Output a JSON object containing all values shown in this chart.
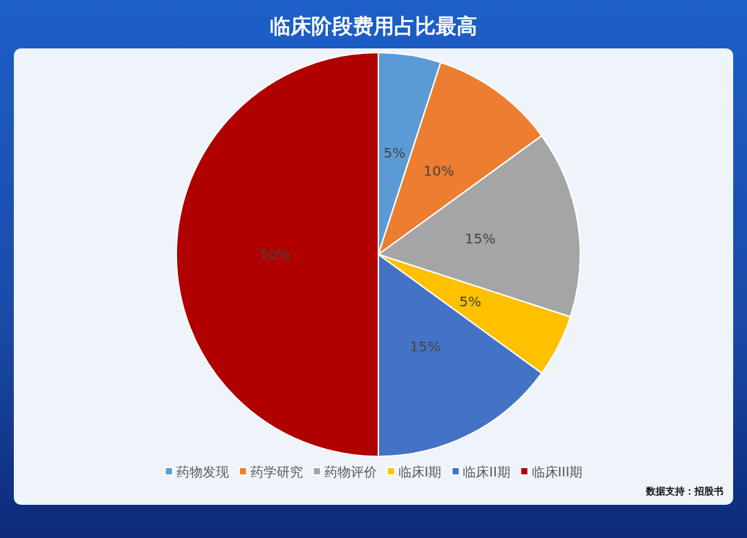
{
  "chart_data": {
    "type": "pie",
    "title": "临床阶段费用占比最高",
    "categories": [
      "药物发现",
      "药学研究",
      "药物评价",
      "临床I期",
      "临床II期",
      "临床III期"
    ],
    "values": [
      5,
      10,
      15,
      5,
      15,
      50
    ],
    "colors": [
      "#5b9bd5",
      "#ed7d31",
      "#a5a5a5",
      "#ffc000",
      "#4472c4",
      "#b00000"
    ],
    "value_labels": [
      "5%",
      "10%",
      "15%",
      "5%",
      "15%",
      "50%"
    ],
    "legend": "bottom",
    "annotations": [
      "数据支持：招股书"
    ]
  }
}
